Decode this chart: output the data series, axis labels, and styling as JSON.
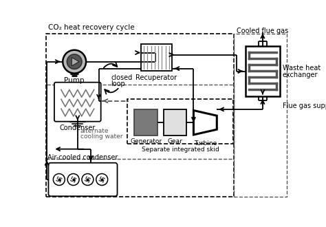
{
  "title": "CO₂ heat recovery cycle",
  "label_pump": "Pump",
  "label_recuperator": "Recuperator",
  "label_waste_heat_1": "Waste heat",
  "label_waste_heat_2": "exchanger",
  "label_condenser": "Condenser",
  "label_generator": "Generator",
  "label_gear": "Gear",
  "label_turbine": "Turbine",
  "label_skid": "Separate integrated skid",
  "label_air": "Air-cooled condenser",
  "label_alt_1": "alternate",
  "label_alt_2": "cooling water",
  "label_closed_1": "closed",
  "label_closed_2": "loop",
  "label_cooled": "Cooled flue gas",
  "label_flue": "Flue gas supply",
  "bg_color": "#ffffff",
  "line_color": "#000000",
  "dash_color": "#555555",
  "gen_fill": "#7a7a7a",
  "gear_fill": "#e0e0e0",
  "pump_outer_fill": "#b8b8b8",
  "pump_inner_fill": "#555555",
  "coil_color": "#555555",
  "zigzag_color": "#777777"
}
